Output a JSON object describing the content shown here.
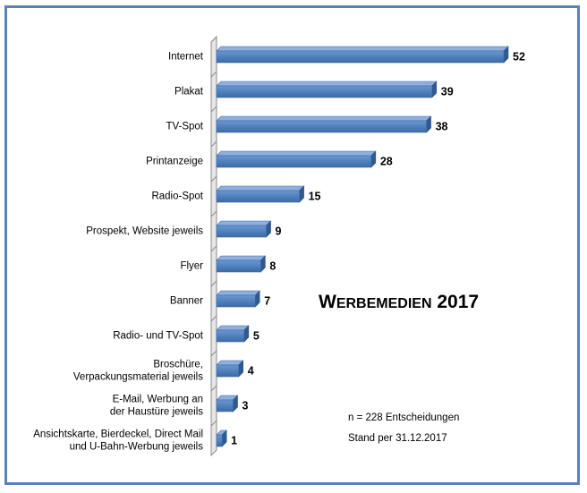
{
  "chart_data": {
    "type": "bar",
    "orientation": "horizontal",
    "title": "Werbemedien 2017",
    "categories": [
      "Internet",
      "Plakat",
      "TV-Spot",
      "Printanzeige",
      "Radio-Spot",
      "Prospekt, Website jeweils",
      "Flyer",
      "Banner",
      "Radio- und TV-Spot",
      "Broschüre,\nVerpackungsmaterial jeweils",
      "E-Mail, Werbung an\nder Haustüre jeweils",
      "Ansichtskarte, Bierdeckel, Direct Mail\nund U-Bahn-Werbung jeweils"
    ],
    "values": [
      52,
      39,
      38,
      28,
      15,
      9,
      8,
      7,
      5,
      4,
      3,
      1
    ],
    "xlim": [
      0,
      52
    ],
    "grid": false,
    "legend": "none",
    "bar_color": "#4f81bd",
    "notes": [
      "n = 228 Entscheidungen",
      "Stand per 31.12.2017"
    ]
  }
}
